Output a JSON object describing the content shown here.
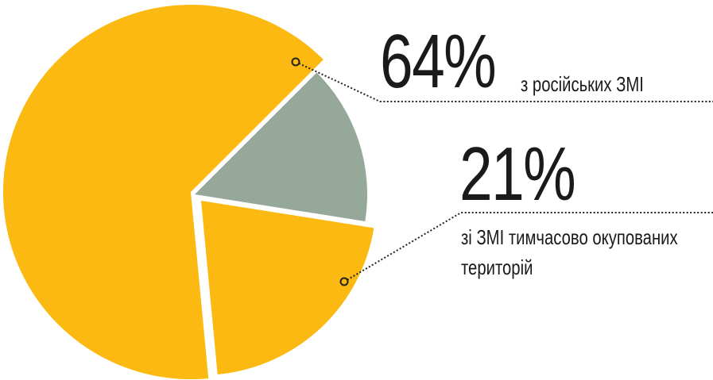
{
  "chart_data": {
    "type": "pie",
    "categories": [
      "з російських ЗМІ",
      "зі ЗМІ тимчасово окупованих територій",
      null
    ],
    "values": [
      64,
      21,
      15
    ],
    "value_labels": [
      "64%",
      "21%",
      null
    ],
    "colors": [
      "#fbb911",
      "#fbb911",
      "#95a899"
    ]
  }
}
